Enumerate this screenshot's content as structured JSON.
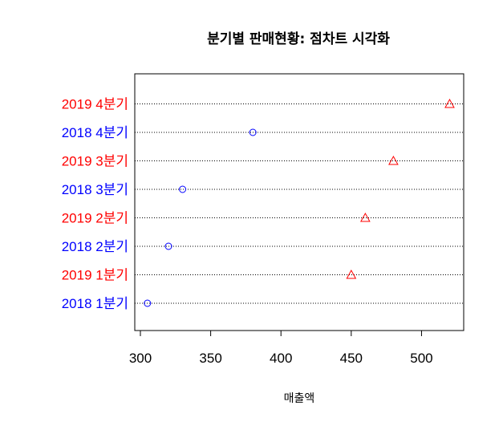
{
  "chart_data": {
    "type": "scatter",
    "title": "분기별 판매현황: 점차트 시각화",
    "xlabel": "매출액",
    "ylabel": "",
    "xlim": [
      296,
      530
    ],
    "xticks": [
      "300",
      "350",
      "400",
      "450",
      "500"
    ],
    "grid": "horizontal dotted lines",
    "categories": [
      "2018 1분기",
      "2019 1분기",
      "2018 2분기",
      "2019 2분기",
      "2018 3분기",
      "2019 3분기",
      "2018 4분기",
      "2019 4분기"
    ],
    "values": [
      305,
      450,
      320,
      460,
      330,
      480,
      380,
      520
    ],
    "colors": [
      "#0000ff",
      "#ff0000",
      "#0000ff",
      "#ff0000",
      "#0000ff",
      "#ff0000",
      "#0000ff",
      "#ff0000"
    ],
    "markers": [
      "circle",
      "triangle",
      "circle",
      "triangle",
      "circle",
      "triangle",
      "circle",
      "triangle"
    ]
  }
}
